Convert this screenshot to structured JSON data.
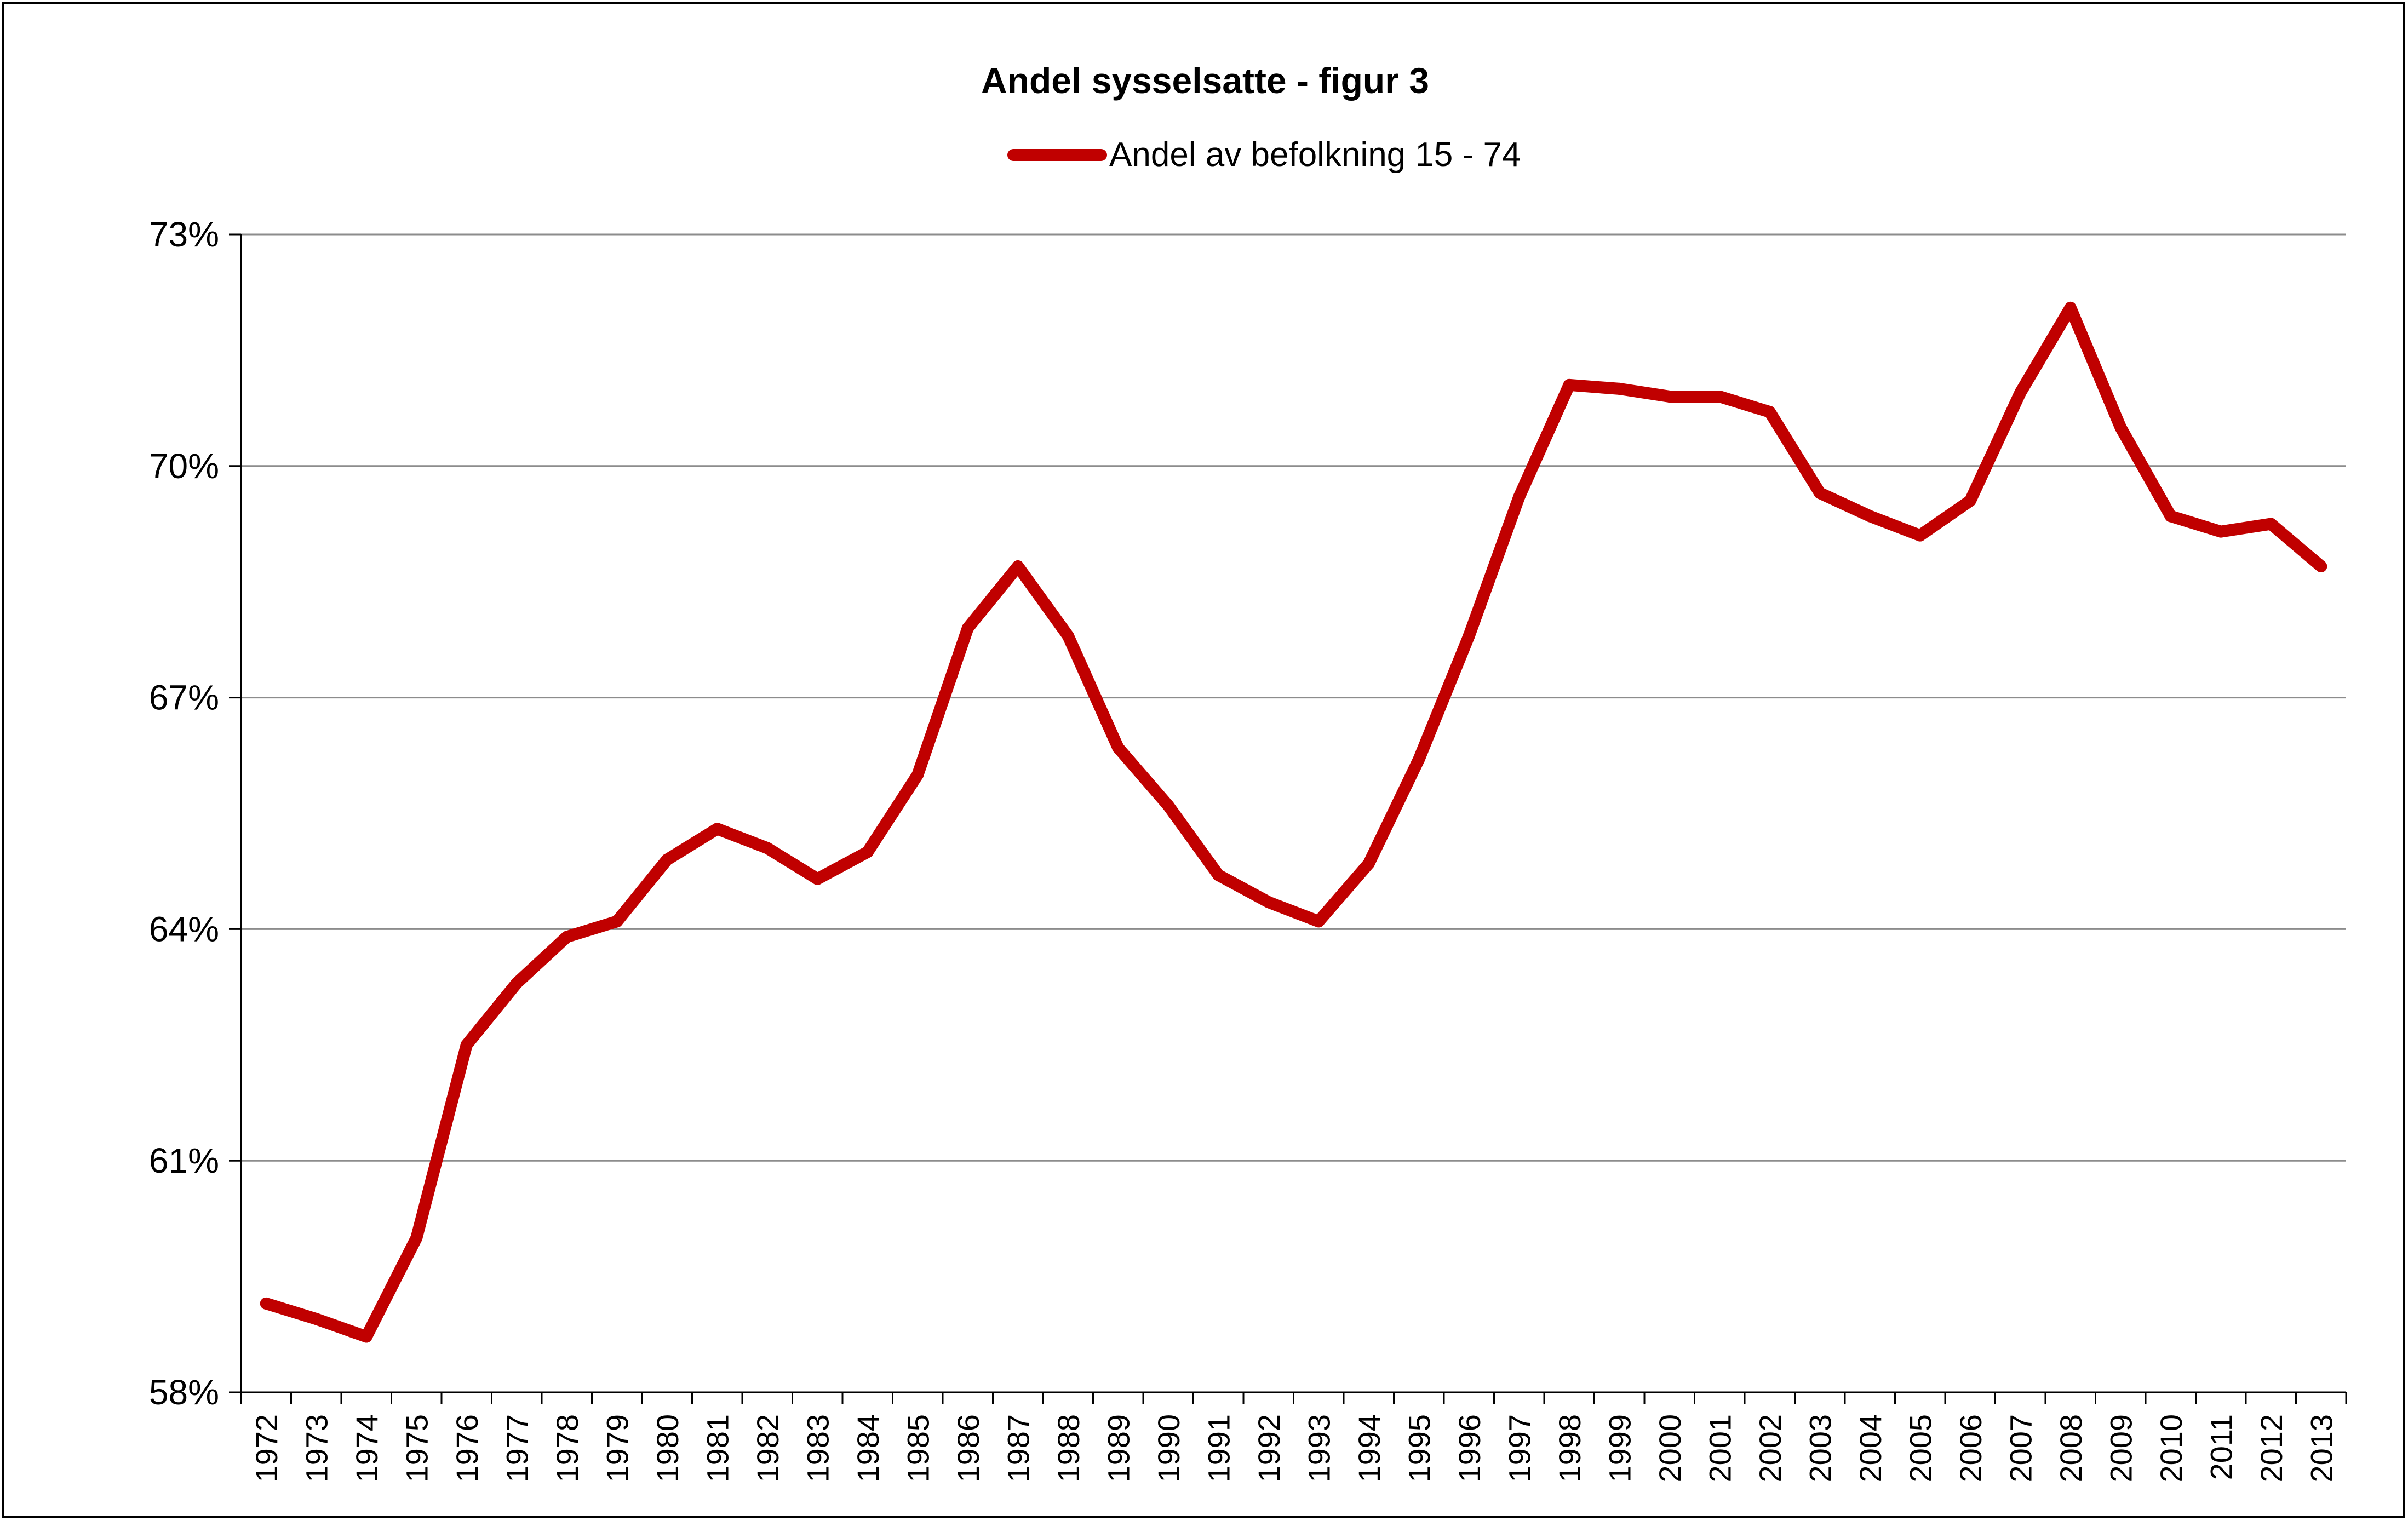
{
  "chart_data": {
    "type": "line",
    "title": "Andel sysselsatte - figur 3",
    "xlabel": "",
    "ylabel": "",
    "ylim": [
      58,
      73
    ],
    "y_ticks": [
      "58%",
      "61%",
      "64%",
      "67%",
      "70%",
      "73%"
    ],
    "y_tick_values": [
      58,
      61,
      64,
      67,
      70,
      73
    ],
    "grid": "horizontal",
    "legend_position": "top-center",
    "categories": [
      "1972",
      "1973",
      "1974",
      "1975",
      "1976",
      "1977",
      "1978",
      "1979",
      "1980",
      "1981",
      "1982",
      "1983",
      "1984",
      "1985",
      "1986",
      "1987",
      "1988",
      "1989",
      "1990",
      "1991",
      "1992",
      "1993",
      "1994",
      "1995",
      "1996",
      "1997",
      "1998",
      "1999",
      "2000",
      "2001",
      "2002",
      "2003",
      "2004",
      "2005",
      "2006",
      "2007",
      "2008",
      "2009",
      "2010",
      "2011",
      "2012",
      "2013"
    ],
    "series": [
      {
        "name": "Andel av befolkning 15 - 74",
        "color": "#c00000",
        "values": [
          59.15,
          58.95,
          58.72,
          60.0,
          62.5,
          63.3,
          63.9,
          64.1,
          64.9,
          65.3,
          65.05,
          64.65,
          65.0,
          66.0,
          67.9,
          68.7,
          67.8,
          66.35,
          65.6,
          64.7,
          64.35,
          64.1,
          64.85,
          66.2,
          67.8,
          69.6,
          71.05,
          71.0,
          70.9,
          70.9,
          70.7,
          69.65,
          69.35,
          69.1,
          69.55,
          70.95,
          72.05,
          70.5,
          69.35,
          69.15,
          69.25,
          68.7
        ]
      }
    ]
  }
}
